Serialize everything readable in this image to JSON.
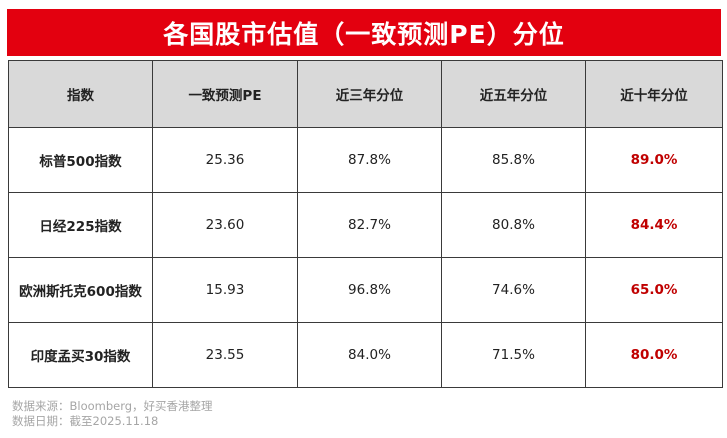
{
  "title": "各国股市估值（一致预测PE）分位",
  "table": {
    "headers": [
      "指数",
      "一致预测PE",
      "近三年分位",
      "近五年分位",
      "近十年分位"
    ],
    "rows": [
      [
        "标普500指数",
        "25.36",
        "87.8%",
        "85.8%",
        "89.0%"
      ],
      [
        "日经225指数",
        "23.60",
        "82.7%",
        "80.8%",
        "84.4%"
      ],
      [
        "欧洲斯托克600指数",
        "15.93",
        "96.8%",
        "74.6%",
        "65.0%"
      ],
      [
        "印度孟买30指数",
        "23.55",
        "84.0%",
        "71.5%",
        "80.0%"
      ]
    ]
  },
  "colors": {
    "title_bg": "#e3000f",
    "header_bg": "#d9d9d9",
    "highlight_text": "#c00000"
  },
  "footer": {
    "source": "数据来源：Bloomberg，好买香港整理",
    "date": "数据日期：截至2025.11.18"
  }
}
